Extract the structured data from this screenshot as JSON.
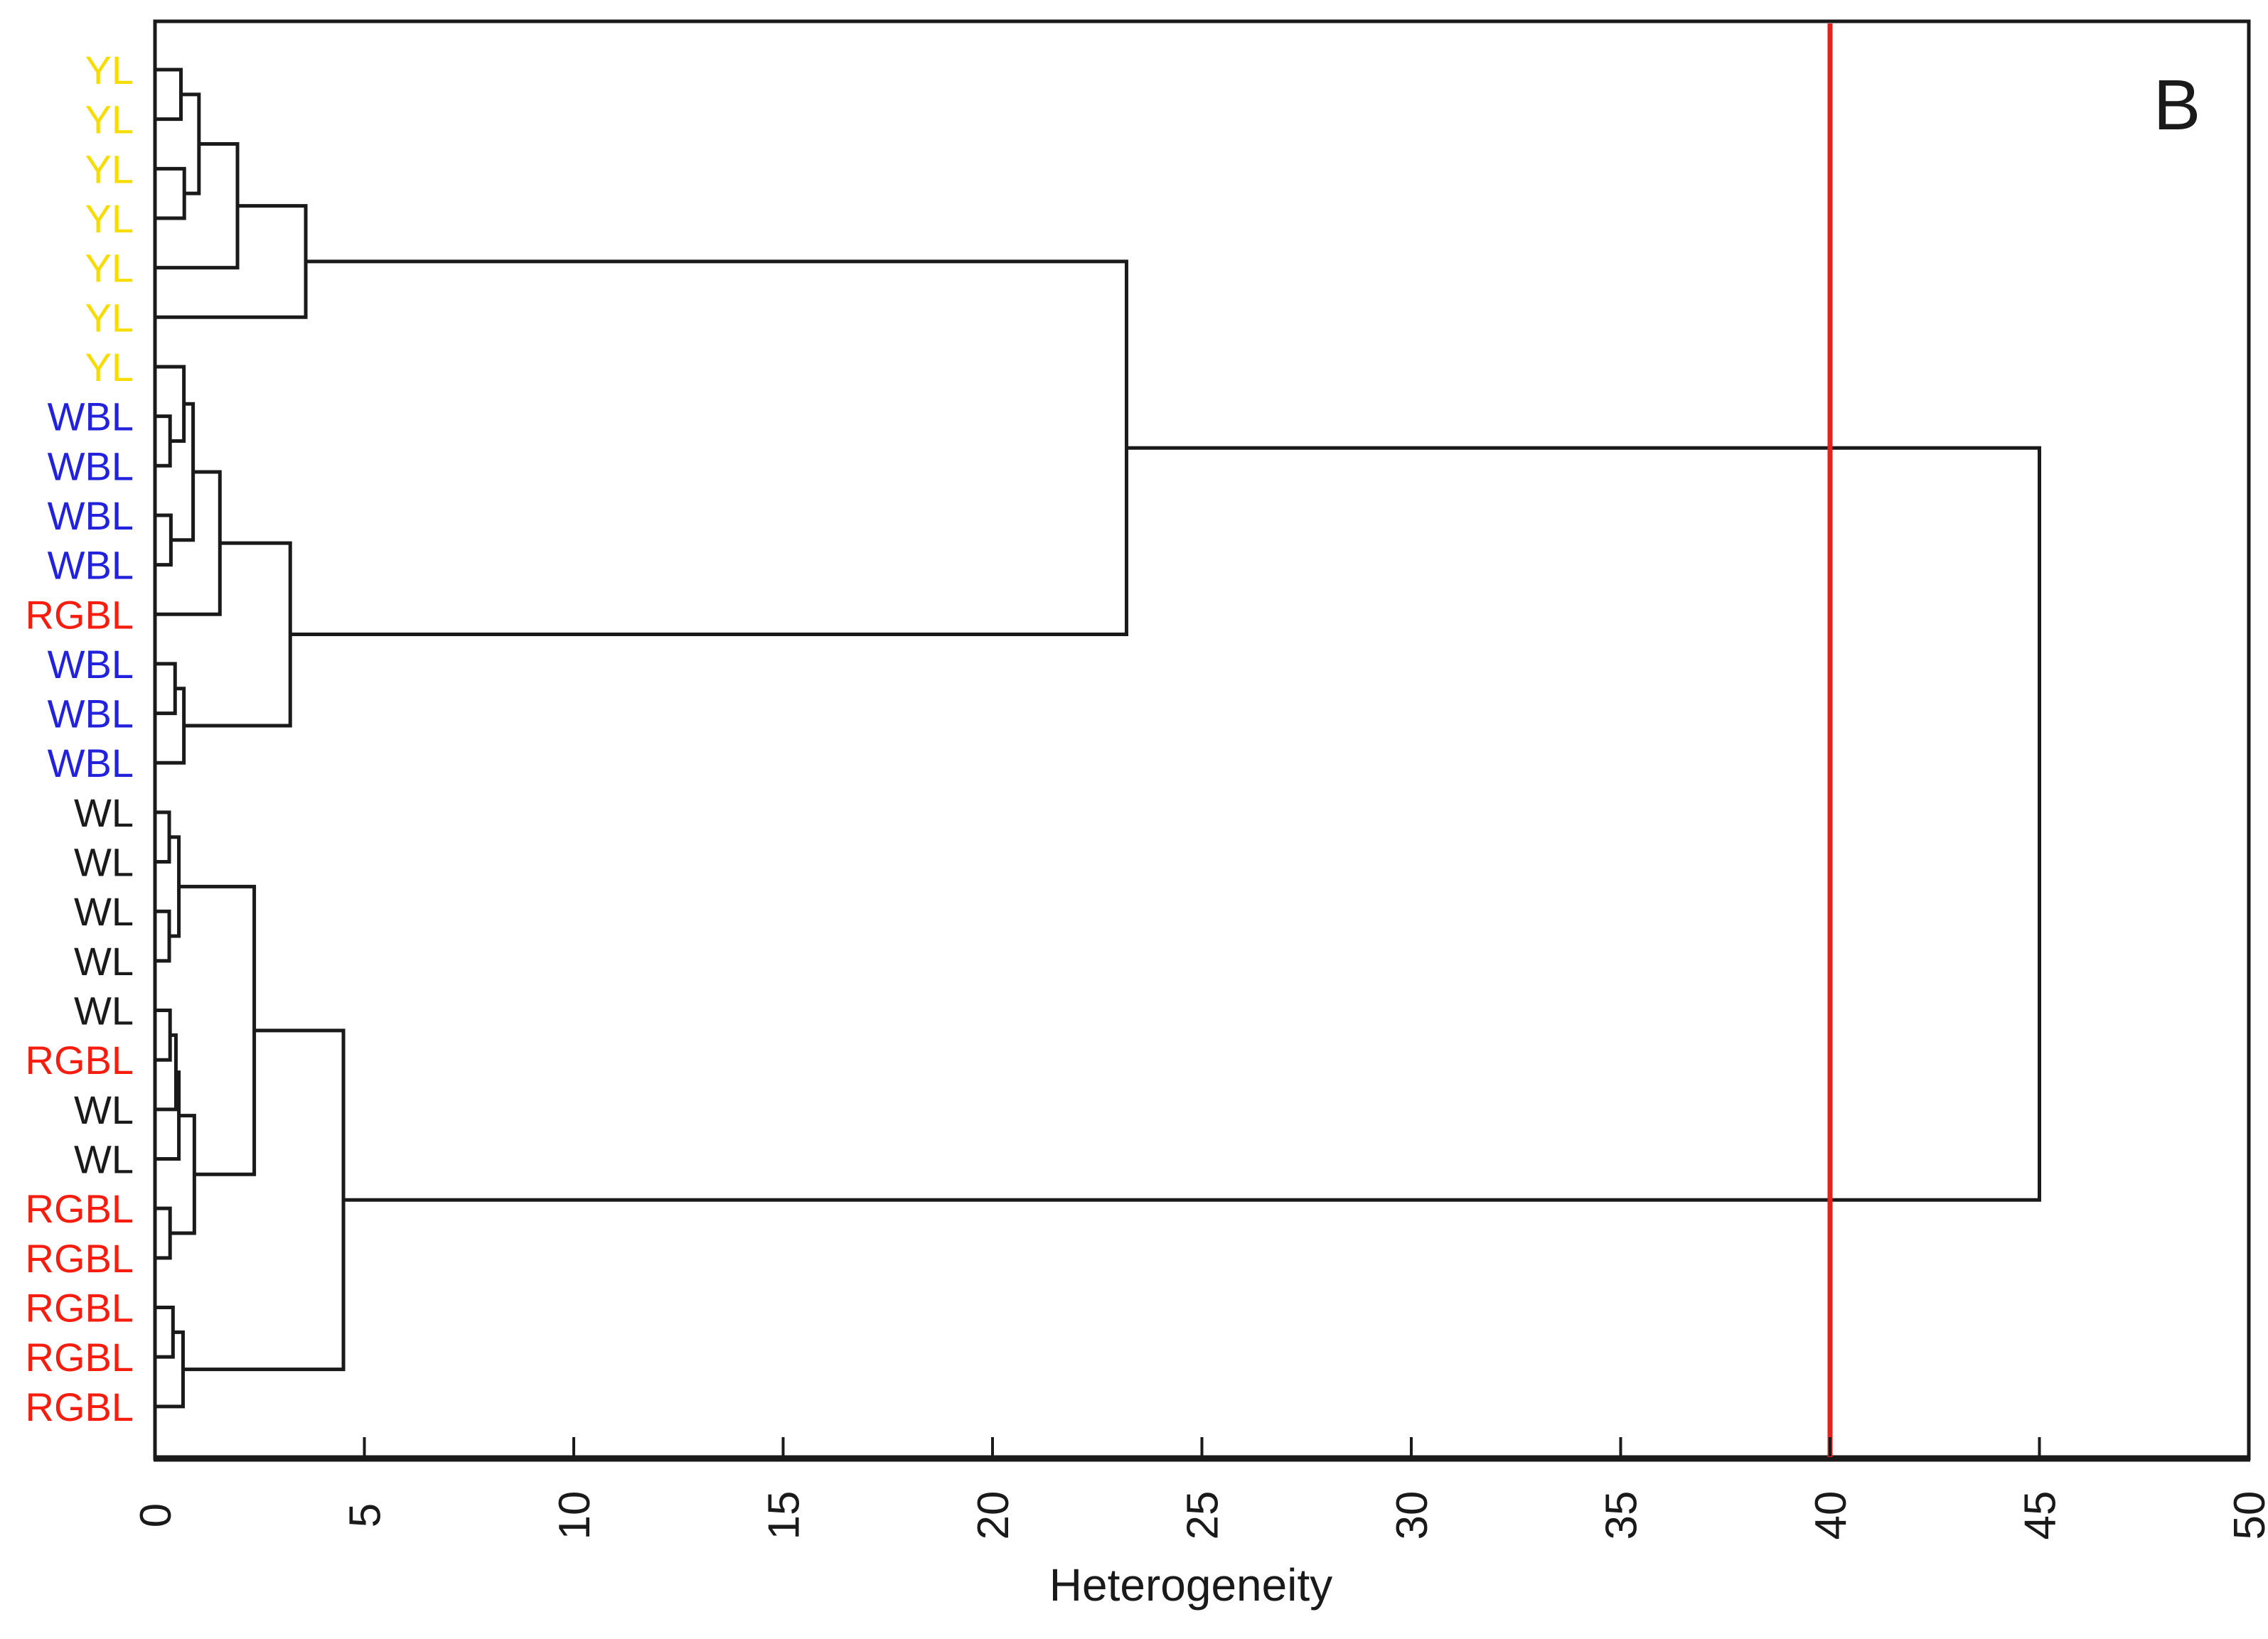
{
  "panel_label": "B",
  "axis": {
    "title": "Heterogeneity",
    "ticks": [
      0,
      5,
      10,
      15,
      20,
      25,
      30,
      35,
      40,
      45,
      50
    ],
    "range": [
      0,
      50
    ]
  },
  "threshold": {
    "value": 40,
    "color": "#e8211d"
  },
  "colors": {
    "line": "#1a1a1a",
    "background": "#ffffff",
    "YL": "#f7dc00",
    "WBL": "#2222dd",
    "RGBL": "#f61d0e",
    "WL": "#1a1a1a"
  },
  "chart_data": {
    "type": "dendrogram",
    "orientation": "horizontal, leaves on left, distance increases to the right",
    "title": "",
    "xlabel": "Heterogeneity",
    "ylabel": "",
    "x_ticks": [
      0,
      5,
      10,
      15,
      20,
      25,
      30,
      35,
      40,
      45,
      50
    ],
    "xlim": [
      0,
      50
    ],
    "threshold_value": 40,
    "panel_label": "B",
    "leaves": [
      "YL",
      "YL",
      "YL",
      "YL",
      "YL",
      "YL",
      "YL",
      "WBL",
      "WBL",
      "WBL",
      "WBL",
      "RGBL",
      "WBL",
      "WBL",
      "WBL",
      "WL",
      "WL",
      "WL",
      "WL",
      "WL",
      "RGBL",
      "WL",
      "WL",
      "RGBL",
      "RGBL",
      "RGBL",
      "RGBL",
      "RGBL"
    ],
    "leaf_color_map": {
      "YL": "#f7dc00",
      "WBL": "#2222dd",
      "RGBL": "#f61d0e",
      "WL": "#1a1a1a"
    },
    "tree": {
      "h": 45.0,
      "c": [
        {
          "h": 23.2,
          "c": [
            {
              "h": 3.6,
              "c": [
                {
                  "h": 1.97,
                  "c": [
                    {
                      "h": 1.05,
                      "c": [
                        {
                          "h": 0.62,
                          "c": [
                            0,
                            1
                          ]
                        },
                        {
                          "h": 0.7,
                          "c": [
                            2,
                            3
                          ]
                        }
                      ]
                    },
                    4
                  ]
                },
                5
              ]
            },
            {
              "h": 3.23,
              "c": [
                {
                  "h": 1.55,
                  "c": [
                    {
                      "h": 0.91,
                      "c": [
                        {
                          "h": 0.69,
                          "c": [
                            6,
                            {
                              "h": 0.36,
                              "c": [
                                7,
                                8
                              ]
                            }
                          ]
                        },
                        {
                          "h": 0.38,
                          "c": [
                            9,
                            10
                          ]
                        }
                      ]
                    },
                    11
                  ]
                },
                {
                  "h": 0.69,
                  "c": [
                    {
                      "h": 0.48,
                      "c": [
                        12,
                        13
                      ]
                    },
                    14
                  ]
                }
              ]
            }
          ]
        },
        {
          "h": 4.5,
          "c": [
            {
              "h": 2.37,
              "c": [
                {
                  "h": 0.57,
                  "c": [
                    {
                      "h": 0.34,
                      "c": [
                        15,
                        16
                      ]
                    },
                    {
                      "h": 0.34,
                      "c": [
                        17,
                        18
                      ]
                    }
                  ]
                },
                {
                  "h": 0.94,
                  "c": [
                    {
                      "h": 0.57,
                      "c": [
                        {
                          "h": 0.5,
                          "c": [
                            {
                              "h": 0.36,
                              "c": [
                                19,
                                20
                              ]
                            },
                            21
                          ]
                        },
                        22
                      ]
                    },
                    {
                      "h": 0.36,
                      "c": [
                        23,
                        24
                      ]
                    }
                  ]
                }
              ]
            },
            {
              "h": 0.67,
              "c": [
                {
                  "h": 0.43,
                  "c": [
                    25,
                    26
                  ]
                },
                27
              ]
            }
          ]
        }
      ]
    }
  }
}
